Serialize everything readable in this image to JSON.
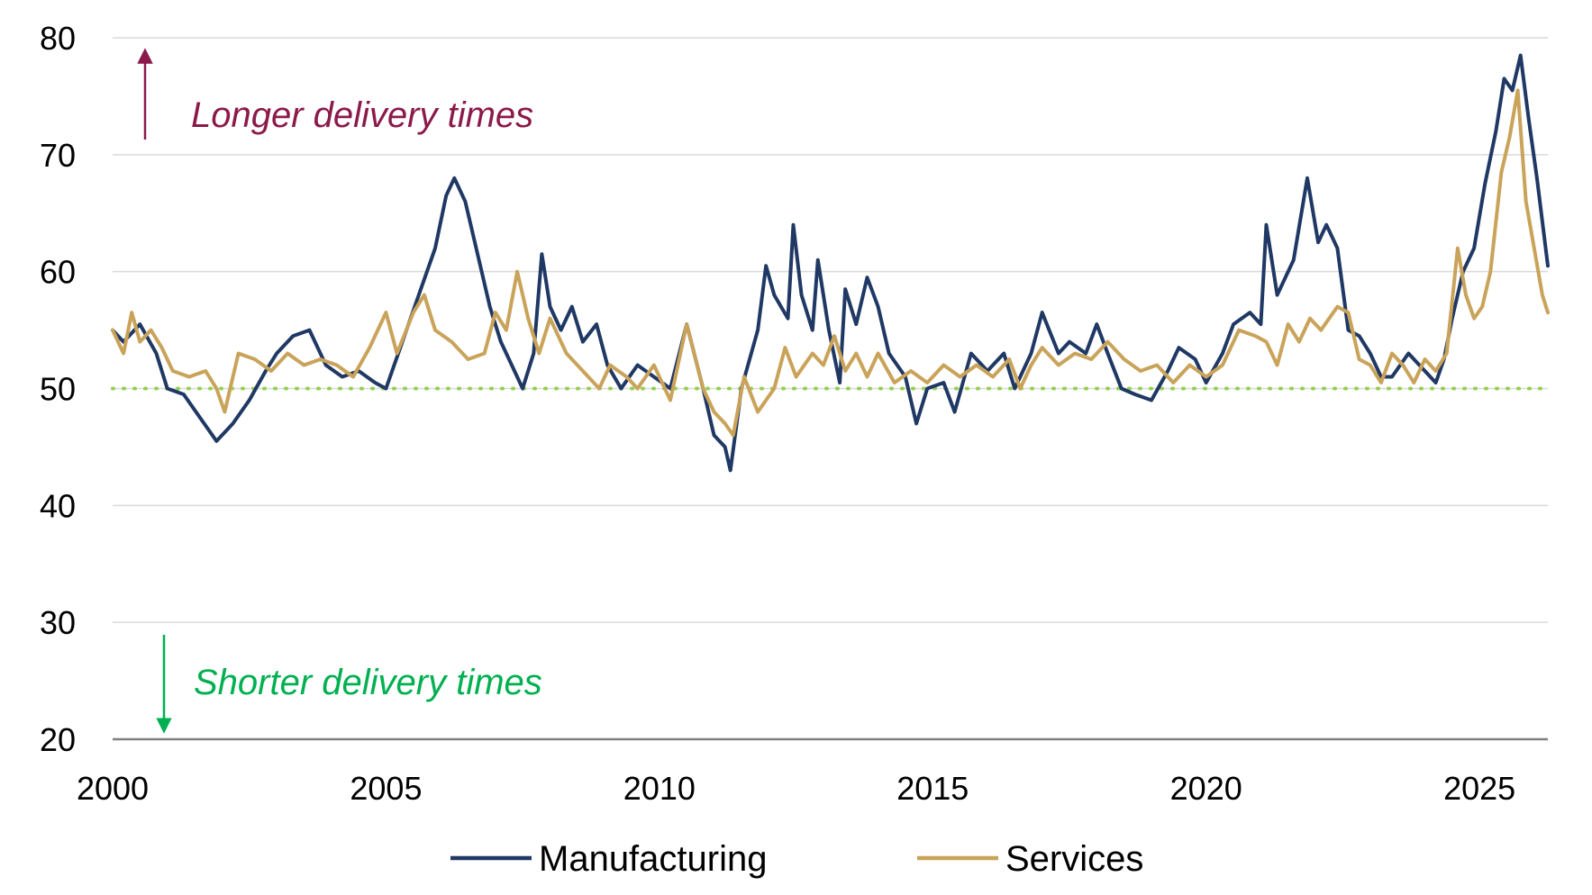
{
  "chart_data": {
    "type": "line",
    "title": "",
    "xlabel": "",
    "ylabel": "",
    "xlim": [
      2000.0,
      2026.25
    ],
    "ylim": [
      20,
      80
    ],
    "x_ticks": [
      "2000",
      "2005",
      "2010",
      "2015",
      "2020",
      "2025"
    ],
    "y_ticks": [
      "20",
      "30",
      "40",
      "50",
      "60",
      "70",
      "80"
    ],
    "grid": "horizontal",
    "legend": "bottom-center",
    "reference_line": {
      "y": 50,
      "color": "#92d050",
      "style": "dotted"
    },
    "annotations": [
      {
        "text": "Longer delivery times",
        "color": "#8b1a4a",
        "direction": "up",
        "at_y": 75
      },
      {
        "text": "Shorter delivery times",
        "color": "#00b050",
        "direction": "down",
        "at_y": 25
      }
    ],
    "series": [
      {
        "name": "Manufacturing",
        "color": "#1f3864",
        "points": [
          [
            2000.0,
            55
          ],
          [
            2000.2,
            54
          ],
          [
            2000.5,
            55.5
          ],
          [
            2000.8,
            53
          ],
          [
            2001.0,
            50
          ],
          [
            2001.3,
            49.5
          ],
          [
            2001.6,
            47.5
          ],
          [
            2001.9,
            45.5
          ],
          [
            2002.2,
            47
          ],
          [
            2002.5,
            49
          ],
          [
            2002.8,
            51.5
          ],
          [
            2003.0,
            53
          ],
          [
            2003.3,
            54.5
          ],
          [
            2003.6,
            55
          ],
          [
            2003.9,
            52
          ],
          [
            2004.2,
            51
          ],
          [
            2004.5,
            51.5
          ],
          [
            2004.8,
            50.5
          ],
          [
            2005.0,
            50
          ],
          [
            2005.3,
            54
          ],
          [
            2005.6,
            58
          ],
          [
            2005.9,
            62
          ],
          [
            2006.1,
            66.5
          ],
          [
            2006.25,
            68
          ],
          [
            2006.45,
            66
          ],
          [
            2006.7,
            61
          ],
          [
            2006.9,
            57
          ],
          [
            2007.1,
            54
          ],
          [
            2007.3,
            52
          ],
          [
            2007.5,
            50
          ],
          [
            2007.7,
            53
          ],
          [
            2007.85,
            61.5
          ],
          [
            2008.0,
            57
          ],
          [
            2008.2,
            55
          ],
          [
            2008.4,
            57
          ],
          [
            2008.6,
            54
          ],
          [
            2008.85,
            55.5
          ],
          [
            2009.05,
            52
          ],
          [
            2009.3,
            50
          ],
          [
            2009.6,
            52
          ],
          [
            2009.9,
            51
          ],
          [
            2010.2,
            50
          ],
          [
            2010.5,
            55.5
          ],
          [
            2010.8,
            50
          ],
          [
            2011.0,
            46
          ],
          [
            2011.2,
            45
          ],
          [
            2011.3,
            43
          ],
          [
            2011.5,
            50
          ],
          [
            2011.8,
            55
          ],
          [
            2011.95,
            60.5
          ],
          [
            2012.1,
            58
          ],
          [
            2012.35,
            56
          ],
          [
            2012.45,
            64
          ],
          [
            2012.6,
            58
          ],
          [
            2012.8,
            55
          ],
          [
            2012.9,
            61
          ],
          [
            2013.1,
            55
          ],
          [
            2013.3,
            50.5
          ],
          [
            2013.4,
            58.5
          ],
          [
            2013.6,
            55.5
          ],
          [
            2013.8,
            59.5
          ],
          [
            2014.0,
            57
          ],
          [
            2014.2,
            53
          ],
          [
            2014.5,
            51
          ],
          [
            2014.7,
            47
          ],
          [
            2014.9,
            50
          ],
          [
            2015.2,
            50.5
          ],
          [
            2015.4,
            48
          ],
          [
            2015.7,
            53
          ],
          [
            2016.0,
            51.5
          ],
          [
            2016.3,
            53
          ],
          [
            2016.5,
            50
          ],
          [
            2016.8,
            53
          ],
          [
            2017.0,
            56.5
          ],
          [
            2017.3,
            53
          ],
          [
            2017.5,
            54
          ],
          [
            2017.8,
            53
          ],
          [
            2018.0,
            55.5
          ],
          [
            2018.2,
            53
          ],
          [
            2018.45,
            50
          ],
          [
            2018.7,
            49.5
          ],
          [
            2019.0,
            49
          ],
          [
            2019.3,
            51.5
          ],
          [
            2019.5,
            53.5
          ],
          [
            2019.8,
            52.5
          ],
          [
            2020.0,
            50.5
          ],
          [
            2020.3,
            53
          ],
          [
            2020.5,
            55.5
          ],
          [
            2020.8,
            56.5
          ],
          [
            2021.0,
            55.5
          ],
          [
            2021.1,
            64
          ],
          [
            2021.3,
            58
          ],
          [
            2021.6,
            61
          ],
          [
            2021.85,
            68
          ],
          [
            2022.05,
            62.5
          ],
          [
            2022.2,
            64
          ],
          [
            2022.4,
            62
          ],
          [
            2022.6,
            55
          ],
          [
            2022.8,
            54.5
          ],
          [
            2023.0,
            53
          ],
          [
            2023.2,
            51
          ],
          [
            2023.4,
            51
          ],
          [
            2023.7,
            53
          ],
          [
            2023.9,
            52
          ],
          [
            2024.2,
            50.5
          ],
          [
            2024.35,
            52.5
          ],
          [
            2024.5,
            56
          ],
          [
            2024.7,
            60
          ],
          [
            2024.9,
            62
          ],
          [
            2025.1,
            67.5
          ],
          [
            2025.3,
            72
          ],
          [
            2025.45,
            76.5
          ],
          [
            2025.6,
            75.5
          ],
          [
            2025.75,
            78.5
          ],
          [
            2025.9,
            73
          ],
          [
            2026.05,
            68
          ],
          [
            2026.25,
            60.5
          ]
        ]
      },
      {
        "name": "Services",
        "color": "#c9a35a",
        "points": [
          [
            2000.0,
            55
          ],
          [
            2000.2,
            53
          ],
          [
            2000.35,
            56.5
          ],
          [
            2000.5,
            54
          ],
          [
            2000.7,
            55
          ],
          [
            2000.9,
            53.5
          ],
          [
            2001.1,
            51.5
          ],
          [
            2001.4,
            51
          ],
          [
            2001.7,
            51.5
          ],
          [
            2001.9,
            50
          ],
          [
            2002.05,
            48
          ],
          [
            2002.3,
            53
          ],
          [
            2002.6,
            52.5
          ],
          [
            2002.9,
            51.5
          ],
          [
            2003.2,
            53
          ],
          [
            2003.5,
            52
          ],
          [
            2003.8,
            52.5
          ],
          [
            2004.1,
            52
          ],
          [
            2004.4,
            51
          ],
          [
            2004.7,
            53.5
          ],
          [
            2005.0,
            56.5
          ],
          [
            2005.2,
            53
          ],
          [
            2005.5,
            56.5
          ],
          [
            2005.7,
            58
          ],
          [
            2005.9,
            55
          ],
          [
            2006.2,
            54
          ],
          [
            2006.5,
            52.5
          ],
          [
            2006.8,
            53
          ],
          [
            2007.0,
            56.5
          ],
          [
            2007.2,
            55
          ],
          [
            2007.4,
            60
          ],
          [
            2007.6,
            56
          ],
          [
            2007.8,
            53
          ],
          [
            2008.0,
            56
          ],
          [
            2008.3,
            53
          ],
          [
            2008.6,
            51.5
          ],
          [
            2008.9,
            50
          ],
          [
            2009.1,
            52
          ],
          [
            2009.4,
            51
          ],
          [
            2009.6,
            50
          ],
          [
            2009.9,
            52
          ],
          [
            2010.2,
            49
          ],
          [
            2010.5,
            55.5
          ],
          [
            2010.8,
            50
          ],
          [
            2011.0,
            48
          ],
          [
            2011.2,
            47
          ],
          [
            2011.35,
            46
          ],
          [
            2011.55,
            51
          ],
          [
            2011.8,
            48
          ],
          [
            2012.1,
            50
          ],
          [
            2012.3,
            53.5
          ],
          [
            2012.5,
            51
          ],
          [
            2012.8,
            53
          ],
          [
            2013.0,
            52
          ],
          [
            2013.2,
            54.5
          ],
          [
            2013.4,
            51.5
          ],
          [
            2013.6,
            53
          ],
          [
            2013.8,
            51
          ],
          [
            2014.0,
            53
          ],
          [
            2014.3,
            50.5
          ],
          [
            2014.6,
            51.5
          ],
          [
            2014.9,
            50.5
          ],
          [
            2015.2,
            52
          ],
          [
            2015.5,
            51
          ],
          [
            2015.8,
            52
          ],
          [
            2016.1,
            51
          ],
          [
            2016.4,
            52.5
          ],
          [
            2016.6,
            50
          ],
          [
            2016.8,
            52
          ],
          [
            2017.0,
            53.5
          ],
          [
            2017.3,
            52
          ],
          [
            2017.6,
            53
          ],
          [
            2017.9,
            52.5
          ],
          [
            2018.2,
            54
          ],
          [
            2018.5,
            52.5
          ],
          [
            2018.8,
            51.5
          ],
          [
            2019.1,
            52
          ],
          [
            2019.4,
            50.5
          ],
          [
            2019.7,
            52
          ],
          [
            2020.0,
            51
          ],
          [
            2020.3,
            52
          ],
          [
            2020.6,
            55
          ],
          [
            2020.9,
            54.5
          ],
          [
            2021.1,
            54
          ],
          [
            2021.3,
            52
          ],
          [
            2021.5,
            55.5
          ],
          [
            2021.7,
            54
          ],
          [
            2021.9,
            56
          ],
          [
            2022.1,
            55
          ],
          [
            2022.4,
            57
          ],
          [
            2022.6,
            56.5
          ],
          [
            2022.8,
            52.5
          ],
          [
            2023.0,
            52
          ],
          [
            2023.2,
            50.5
          ],
          [
            2023.4,
            53
          ],
          [
            2023.6,
            52
          ],
          [
            2023.8,
            50.5
          ],
          [
            2024.0,
            52.5
          ],
          [
            2024.2,
            51.5
          ],
          [
            2024.4,
            53
          ],
          [
            2024.6,
            62
          ],
          [
            2024.75,
            58
          ],
          [
            2024.9,
            56
          ],
          [
            2025.05,
            57
          ],
          [
            2025.2,
            60
          ],
          [
            2025.4,
            68.5
          ],
          [
            2025.55,
            71.5
          ],
          [
            2025.7,
            75.5
          ],
          [
            2025.85,
            66
          ],
          [
            2026.0,
            62
          ],
          [
            2026.15,
            58
          ],
          [
            2026.25,
            56.5
          ]
        ]
      }
    ]
  }
}
